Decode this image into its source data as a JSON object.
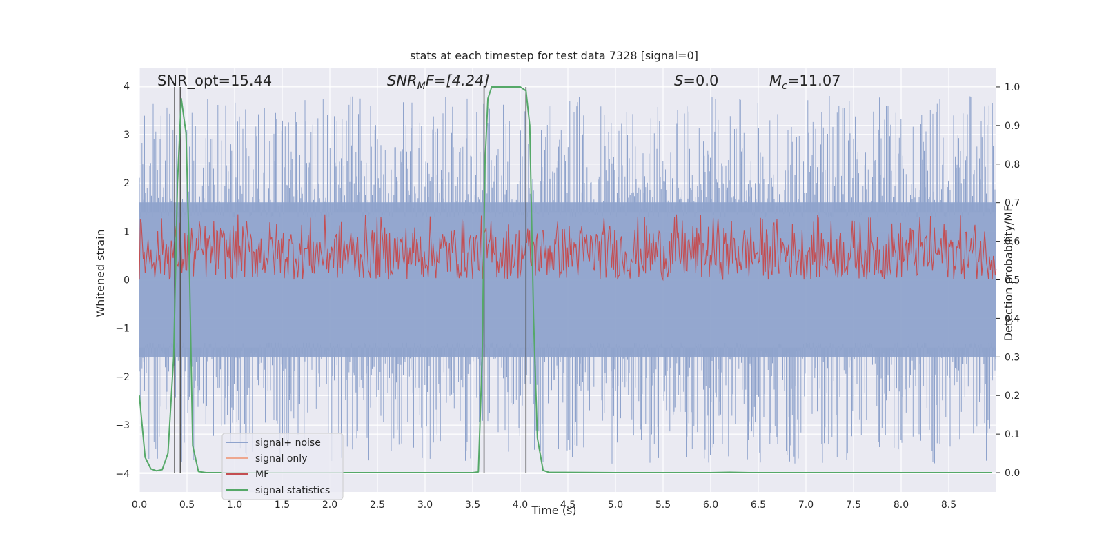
{
  "chart_data": {
    "type": "line",
    "title": "stats at each timestep for test data 7328 [signal=0]",
    "xlabel": "Time (s)",
    "ylabel_left": "Whitened strain",
    "ylabel_right": "Detection probability/MF",
    "xlim": [
      0.0,
      9.0
    ],
    "ylim_left": [
      -4.38,
      4.38
    ],
    "ylim_right": [
      -0.05,
      1.05
    ],
    "x_ticks": [
      0.0,
      0.5,
      1.0,
      1.5,
      2.0,
      2.5,
      3.0,
      3.5,
      4.0,
      4.5,
      5.0,
      5.5,
      6.0,
      6.5,
      7.0,
      7.5,
      8.0,
      8.5
    ],
    "x_tick_labels": [
      "0.0",
      "0.5",
      "1.0",
      "1.5",
      "2.0",
      "2.5",
      "3.0",
      "3.5",
      "4.0",
      "4.5",
      "5.0",
      "5.5",
      "6.0",
      "6.5",
      "7.0",
      "7.5",
      "8.0",
      "8.5"
    ],
    "y_left_ticks": [
      -4,
      -3,
      -2,
      -1,
      0,
      1,
      2,
      3,
      4
    ],
    "y_left_tick_labels": [
      "−4",
      "−3",
      "−2",
      "−1",
      "0",
      "1",
      "2",
      "3",
      "4"
    ],
    "y_right_ticks": [
      0.0,
      0.1,
      0.2,
      0.3,
      0.4,
      0.5,
      0.6,
      0.7,
      0.8,
      0.9,
      1.0
    ],
    "y_right_tick_labels": [
      "0.0",
      "0.1",
      "0.2",
      "0.3",
      "0.4",
      "0.5",
      "0.6",
      "0.7",
      "0.8",
      "0.9",
      "1.0"
    ],
    "grid": true,
    "legend_position": "lower-left",
    "annotations": {
      "snr_opt": "SNR_opt=15.44",
      "snr_mf_prefix": "SNR",
      "snr_mf_sub": "M",
      "snr_mf_suffix": "F=[4.24]",
      "s_prefix": "S",
      "s_suffix": "=0.0",
      "mc_prefix": "M",
      "mc_sub": "c",
      "mc_suffix": "=11.07"
    },
    "vertical_lines_x": [
      0.37,
      0.43,
      3.62,
      4.06
    ],
    "series": [
      {
        "name": "signal+ noise",
        "axis": "left",
        "color": "#8fa3cc",
        "style": "dense noise trace, approx. band -1.6 to 1.6 with peaks to about ±3.8",
        "envelope_level": 1.6,
        "peak_level": 3.8
      },
      {
        "name": "signal only",
        "axis": "left",
        "color": "#eea78f",
        "values": []
      },
      {
        "name": "MF",
        "axis": "right",
        "color": "#c44e52",
        "style": "dense trace, approx. 0.5 to 0.63 with peaks to about 0.67",
        "baseline": 0.5,
        "band_top": 0.63,
        "peak": 0.67
      },
      {
        "name": "signal statistics",
        "axis": "right",
        "color": "#55a868",
        "x": [
          0.0,
          0.06,
          0.12,
          0.18,
          0.24,
          0.3,
          0.36,
          0.4,
          0.44,
          0.49,
          0.52,
          0.56,
          0.62,
          0.7,
          0.8,
          1.0,
          2.0,
          3.0,
          3.5,
          3.56,
          3.6,
          3.63,
          3.66,
          3.7,
          3.8,
          4.0,
          4.06,
          4.1,
          4.14,
          4.18,
          4.24,
          4.3,
          5.0,
          6.0,
          6.2,
          6.4,
          8.0,
          8.95
        ],
        "y": [
          0.2,
          0.04,
          0.01,
          0.005,
          0.008,
          0.05,
          0.3,
          0.75,
          0.97,
          0.88,
          0.6,
          0.07,
          0.003,
          0.0,
          0.0,
          0.0,
          0.0,
          0.0,
          0.0,
          0.002,
          0.3,
          0.8,
          0.97,
          1.0,
          1.0,
          1.0,
          0.99,
          0.9,
          0.4,
          0.09,
          0.006,
          0.001,
          0.0,
          0.0,
          0.001,
          0.0,
          0.0,
          0.0
        ]
      }
    ],
    "legend": [
      "signal+ noise",
      "signal only",
      "MF",
      "signal statistics"
    ]
  }
}
